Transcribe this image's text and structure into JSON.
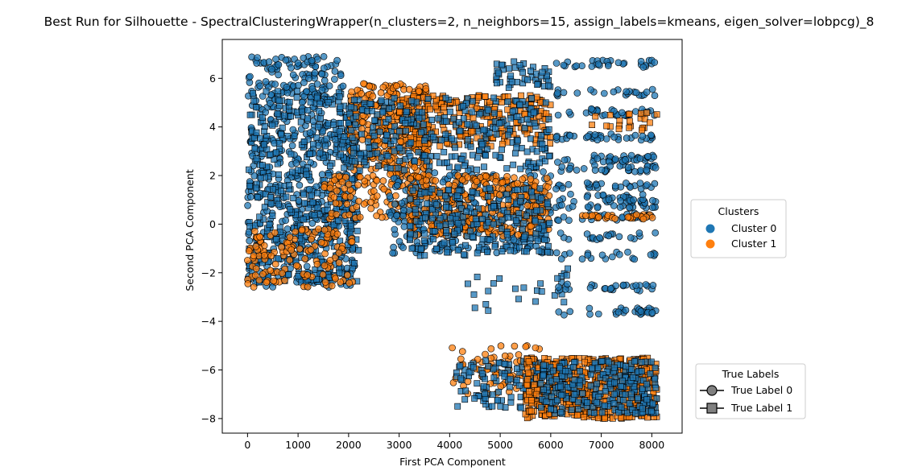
{
  "chart_data": {
    "type": "scatter",
    "title": "Best Run for Silhouette - SpectralClusteringWrapper(n_clusters=2, n_neighbors=15, assign_labels=kmeans, eigen_solver=lobpcg)_8",
    "xlabel": "First PCA Component",
    "ylabel": "Second PCA Component",
    "xlim": [
      -500,
      8600
    ],
    "ylim": [
      -8.6,
      7.6
    ],
    "xticks": [
      0,
      1000,
      2000,
      3000,
      4000,
      5000,
      6000,
      7000,
      8000
    ],
    "yticks": [
      -8,
      -6,
      -4,
      -2,
      0,
      2,
      4,
      6
    ],
    "grid": false,
    "colors": {
      "cluster_0": "#1f77b4",
      "cluster_1": "#ff7f0e",
      "edge": "#000000"
    },
    "legend_clusters": {
      "title": "Clusters",
      "placement": "right-middle",
      "entries": [
        {
          "label": "Cluster 0",
          "color": "#1f77b4",
          "marker": "circle"
        },
        {
          "label": "Cluster 1",
          "color": "#ff7f0e",
          "marker": "circle"
        }
      ]
    },
    "legend_true_labels": {
      "title": "True Labels",
      "placement": "right-bottom",
      "entries": [
        {
          "label": "True Label 0",
          "color": "#808080",
          "marker": "circle"
        },
        {
          "label": "True Label 1",
          "color": "#808080",
          "marker": "square"
        }
      ]
    },
    "regions": [
      {
        "cluster": 0,
        "true_label": 0,
        "x": [
          0,
          1900
        ],
        "y": [
          4.5,
          6.9
        ],
        "n": 160
      },
      {
        "cluster": 0,
        "true_label": 0,
        "x": [
          0,
          2200
        ],
        "y": [
          -2.6,
          4.5
        ],
        "n": 420
      },
      {
        "cluster": 0,
        "true_label": 1,
        "x": [
          0,
          2200
        ],
        "y": [
          -2.4,
          5.5
        ],
        "n": 380
      },
      {
        "cluster": 1,
        "true_label": 0,
        "x": [
          0,
          2100
        ],
        "y": [
          -2.6,
          -0.2
        ],
        "n": 130
      },
      {
        "cluster": 1,
        "true_label": 0,
        "x": [
          1500,
          3400
        ],
        "y": [
          0.2,
          2.0
        ],
        "n": 110
      },
      {
        "cluster": 1,
        "true_label": 0,
        "x": [
          2000,
          3600
        ],
        "y": [
          2.0,
          5.8
        ],
        "n": 300
      },
      {
        "cluster": 1,
        "true_label": 1,
        "x": [
          3000,
          6000
        ],
        "y": [
          3.2,
          5.3
        ],
        "n": 260
      },
      {
        "cluster": 0,
        "true_label": 1,
        "x": [
          1800,
          6000
        ],
        "y": [
          2.2,
          5.2
        ],
        "n": 320
      },
      {
        "cluster": 0,
        "true_label": 0,
        "x": [
          2800,
          6000
        ],
        "y": [
          -1.2,
          2.2
        ],
        "n": 280
      },
      {
        "cluster": 1,
        "true_label": 0,
        "x": [
          3200,
          6000
        ],
        "y": [
          -0.5,
          2.0
        ],
        "n": 320
      },
      {
        "cluster": 0,
        "true_label": 1,
        "x": [
          3200,
          6000
        ],
        "y": [
          -1.3,
          1.5
        ],
        "n": 220
      },
      {
        "cluster": 0,
        "true_label": 1,
        "x": [
          4000,
          6400
        ],
        "y": [
          -3.6,
          -1.8
        ],
        "n": 25
      },
      {
        "cluster": 0,
        "true_label": 1,
        "x": [
          4900,
          6000
        ],
        "y": [
          5.6,
          6.7
        ],
        "n": 45
      },
      {
        "cluster": 0,
        "true_label": 0,
        "x": [
          6100,
          8100
        ],
        "y": [
          -3.7,
          6.7
        ],
        "n": 400,
        "banded": true
      },
      {
        "cluster": 1,
        "true_label": 1,
        "x": [
          6800,
          8100
        ],
        "y": [
          3.8,
          4.6
        ],
        "n": 22
      },
      {
        "cluster": 1,
        "true_label": 0,
        "x": [
          6600,
          8100
        ],
        "y": [
          0.2,
          0.4
        ],
        "n": 28
      },
      {
        "cluster": 1,
        "true_label": 0,
        "x": [
          4000,
          5800
        ],
        "y": [
          -7.0,
          -5.0
        ],
        "n": 70
      },
      {
        "cluster": 0,
        "true_label": 1,
        "x": [
          4100,
          6000
        ],
        "y": [
          -7.6,
          -5.6
        ],
        "n": 120
      },
      {
        "cluster": 1,
        "true_label": 1,
        "x": [
          5500,
          8100
        ],
        "y": [
          -8.0,
          -5.5
        ],
        "n": 520
      },
      {
        "cluster": 0,
        "true_label": 1,
        "x": [
          5800,
          8100
        ],
        "y": [
          -7.8,
          -5.6
        ],
        "n": 260
      }
    ]
  }
}
